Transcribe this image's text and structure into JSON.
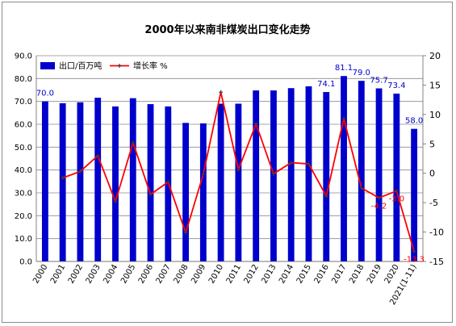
{
  "chart_data": {
    "type": "bar",
    "title": "2000年以来南非煤炭出口变化走势",
    "categories": [
      "2000",
      "2001",
      "2002",
      "2003",
      "2004",
      "2005",
      "2006",
      "2007",
      "2008",
      "2009",
      "2010",
      "2011",
      "2012",
      "2013",
      "2014",
      "2015",
      "2016",
      "2017",
      "2018",
      "2019",
      "2020",
      "2021(1-11)"
    ],
    "series": [
      {
        "name": "出口/百万吨",
        "type": "bar",
        "axis": "left",
        "color": "#0000cc",
        "values": [
          70.0,
          69.2,
          69.6,
          71.6,
          67.8,
          71.4,
          68.8,
          67.8,
          60.6,
          60.4,
          69.0,
          69.0,
          74.8,
          74.8,
          75.8,
          76.6,
          74.1,
          81.1,
          79.0,
          75.7,
          73.4,
          58.0
        ]
      },
      {
        "name": "增长率 %",
        "type": "line",
        "axis": "right",
        "color": "#ff0000",
        "values": [
          null,
          -0.8,
          0.3,
          3.0,
          -4.8,
          5.2,
          -3.6,
          -1.5,
          -10.1,
          -0.2,
          13.8,
          0.6,
          8.4,
          -0.1,
          1.8,
          1.6,
          -3.9,
          9.3,
          -2.5,
          -4.2,
          -3.0,
          -13.3
        ]
      }
    ],
    "bar_labels": [
      {
        "index": 0,
        "text": "70.0"
      },
      {
        "index": 16,
        "text": "74.1"
      },
      {
        "index": 17,
        "text": "81.1"
      },
      {
        "index": 18,
        "text": "79.0"
      },
      {
        "index": 19,
        "text": "75.7"
      },
      {
        "index": 20,
        "text": "73.4"
      },
      {
        "index": 21,
        "text": "58.0"
      }
    ],
    "line_labels": [
      {
        "index": 19,
        "text": "-4.2"
      },
      {
        "index": 20,
        "text": "-3.0"
      },
      {
        "index": 21,
        "text": "-13.3"
      }
    ],
    "y_left": {
      "min": 0,
      "max": 90,
      "step": 10,
      "tick_labels": [
        "0.0",
        "10.0",
        "20.0",
        "30.0",
        "40.0",
        "50.0",
        "60.0",
        "70.0",
        "80.0",
        "90.0"
      ]
    },
    "y_right": {
      "min": -15,
      "max": 20,
      "step": 5,
      "tick_labels": [
        "-15",
        "-10",
        "-5",
        "0",
        "5",
        "10",
        "15",
        "20"
      ]
    },
    "grid": true,
    "legend": {
      "placement": "top-left",
      "items": [
        "出口/百万吨",
        "增长率 %"
      ]
    },
    "xlabel": "",
    "ylabel": ""
  }
}
